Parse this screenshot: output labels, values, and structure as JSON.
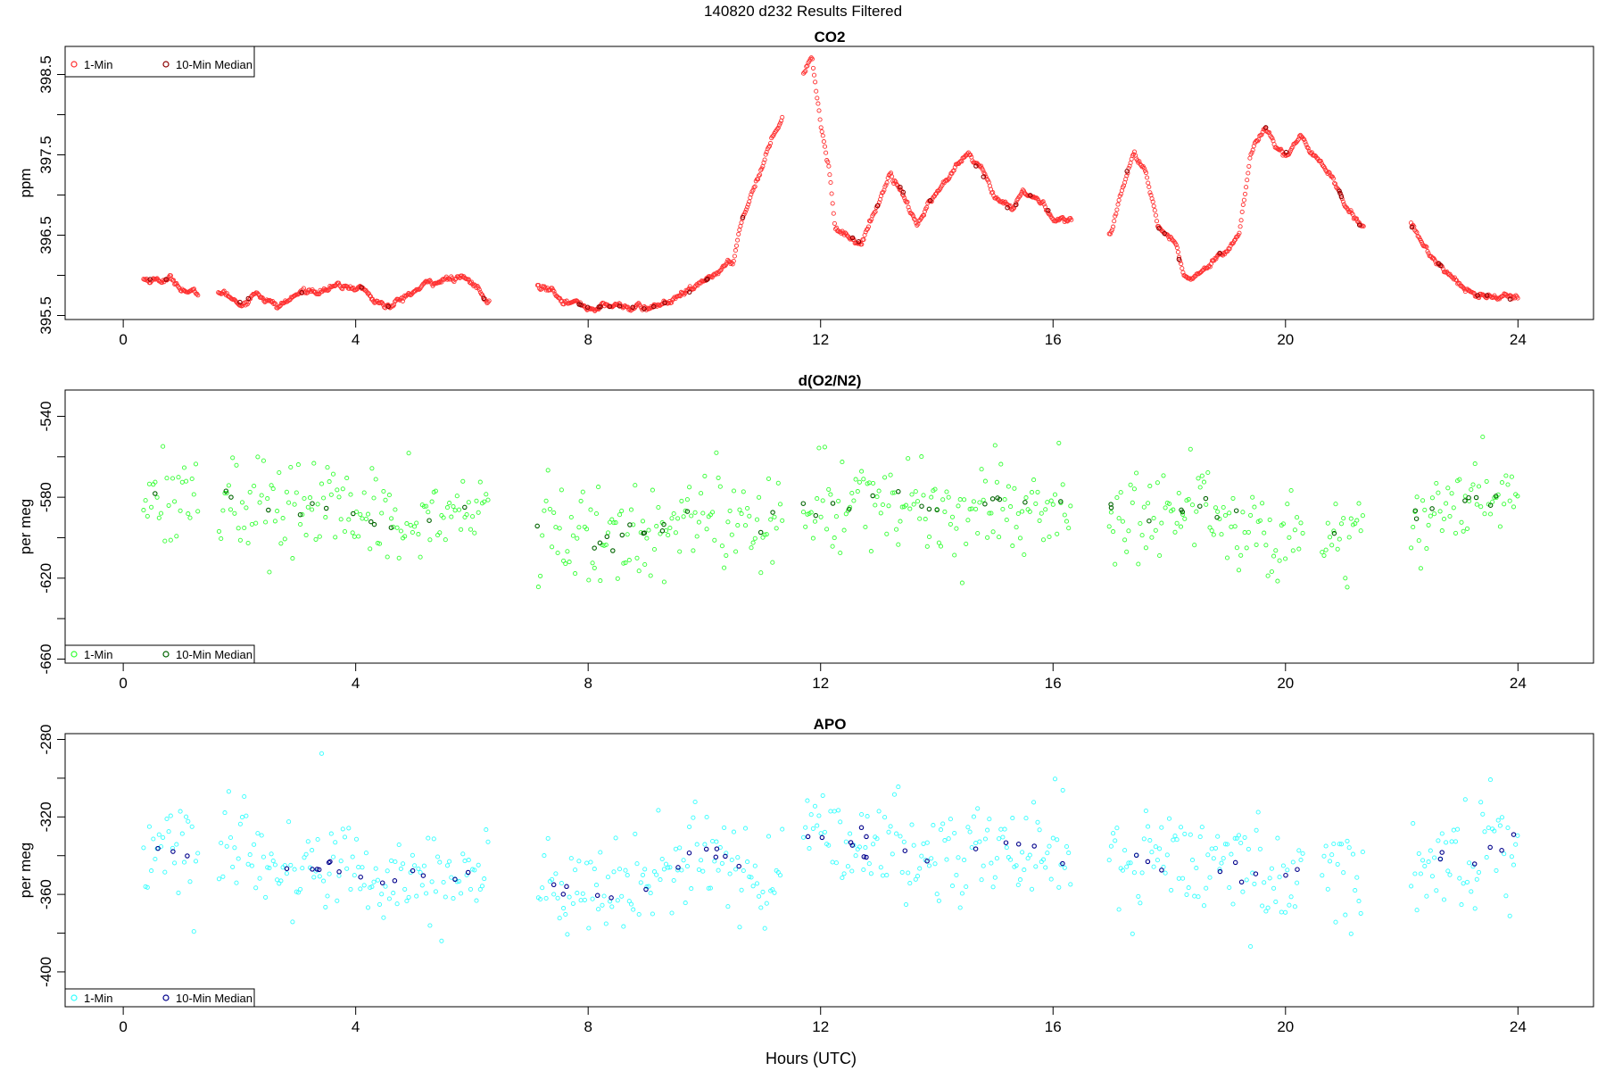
{
  "figure": {
    "title": "140820   d232   Results Filtered",
    "xlabel": "Hours (UTC)"
  },
  "chart_data": [
    {
      "type": "scatter",
      "title": "CO2",
      "ylabel": "ppm",
      "xlim": [
        -1.0,
        25.3
      ],
      "ylim": [
        395.45,
        398.85
      ],
      "xticks": [
        0,
        4,
        8,
        12,
        16,
        20,
        24
      ],
      "yticks": [
        395.5,
        396.5,
        397.5,
        398.5
      ],
      "minor_yticks": [
        396.0,
        397.0,
        398.0
      ],
      "legend": {
        "placement": "top-left",
        "entries": [
          "1-Min",
          "10-Min Median"
        ]
      },
      "colors": {
        "one_min": "#ff3030",
        "median": "#8b0000"
      },
      "series": [
        {
          "name": "1-Min",
          "anchors": [
            [
              0.35,
              395.95
            ],
            [
              0.8,
              395.95
            ],
            [
              1.25,
              395.75
            ],
            [
              1.65,
              395.8
            ],
            [
              2.05,
              395.65
            ],
            [
              2.3,
              395.8
            ],
            [
              2.65,
              395.6
            ],
            [
              3.1,
              395.8
            ],
            [
              3.6,
              395.85
            ],
            [
              4.1,
              395.85
            ],
            [
              4.3,
              395.7
            ],
            [
              4.6,
              395.6
            ],
            [
              5.0,
              395.8
            ],
            [
              5.45,
              395.95
            ],
            [
              5.85,
              395.95
            ],
            [
              6.1,
              395.85
            ],
            [
              6.25,
              395.65
            ],
            [
              7.15,
              395.85
            ],
            [
              7.4,
              395.85
            ],
            [
              7.6,
              395.7
            ],
            [
              8.0,
              395.6
            ],
            [
              8.6,
              395.62
            ],
            [
              9.0,
              395.58
            ],
            [
              9.5,
              395.7
            ],
            [
              9.9,
              395.85
            ],
            [
              10.2,
              396.05
            ],
            [
              10.5,
              396.15
            ],
            [
              10.6,
              396.6
            ],
            [
              10.9,
              397.2
            ],
            [
              11.3,
              397.95
            ],
            [
              11.7,
              398.55
            ],
            [
              11.85,
              398.75
            ],
            [
              12.0,
              397.9
            ],
            [
              12.15,
              397.3
            ],
            [
              12.25,
              396.6
            ],
            [
              12.7,
              396.4
            ],
            [
              13.0,
              396.9
            ],
            [
              13.2,
              397.3
            ],
            [
              13.45,
              397.0
            ],
            [
              13.65,
              396.6
            ],
            [
              13.9,
              396.95
            ],
            [
              14.3,
              397.3
            ],
            [
              14.5,
              397.5
            ],
            [
              14.75,
              397.3
            ],
            [
              15.0,
              396.95
            ],
            [
              15.3,
              396.8
            ],
            [
              15.5,
              397.05
            ],
            [
              15.8,
              396.9
            ],
            [
              16.05,
              396.7
            ],
            [
              16.3,
              396.7
            ],
            [
              17.0,
              396.5
            ],
            [
              17.2,
              397.15
            ],
            [
              17.4,
              397.55
            ],
            [
              17.6,
              397.2
            ],
            [
              17.8,
              396.6
            ],
            [
              18.1,
              396.4
            ],
            [
              18.25,
              395.95
            ],
            [
              18.5,
              396.0
            ],
            [
              18.9,
              396.3
            ],
            [
              19.2,
              396.5
            ],
            [
              19.4,
              397.5
            ],
            [
              19.65,
              397.85
            ],
            [
              19.8,
              397.7
            ],
            [
              20.05,
              397.5
            ],
            [
              20.25,
              397.7
            ],
            [
              20.65,
              397.4
            ],
            [
              20.9,
              397.1
            ],
            [
              21.0,
              396.9
            ],
            [
              21.3,
              396.6
            ],
            [
              22.2,
              396.6
            ],
            [
              22.5,
              396.25
            ],
            [
              22.9,
              395.95
            ],
            [
              23.3,
              395.75
            ],
            [
              23.6,
              395.75
            ],
            [
              24.0,
              395.68
            ]
          ],
          "gaps": [
            [
              1.3,
              1.62
            ],
            [
              6.3,
              7.12
            ],
            [
              11.35,
              11.7
            ],
            [
              16.32,
              16.95
            ],
            [
              21.35,
              22.15
            ]
          ],
          "noise": 0.03
        },
        {
          "name": "10-Min Median",
          "count": 52
        }
      ]
    },
    {
      "type": "scatter",
      "title": "d(O2/N2)",
      "ylabel": "per meg",
      "xlim": [
        -1.0,
        25.3
      ],
      "ylim": [
        -662,
        -527
      ],
      "xticks": [
        0,
        4,
        8,
        12,
        16,
        20,
        24
      ],
      "yticks": [
        -540,
        -580,
        -620,
        -660
      ],
      "minor_yticks": [
        -560,
        -600,
        -640
      ],
      "legend": {
        "placement": "bottom-left",
        "entries": [
          "1-Min",
          "10-Min Median"
        ]
      },
      "colors": {
        "one_min": "#33ff33",
        "median": "#006400"
      },
      "series": [
        {
          "name": "1-Min",
          "anchors": [
            [
              0.35,
              -578
            ],
            [
              1.0,
              -577
            ],
            [
              1.3,
              -582
            ],
            [
              1.7,
              -580
            ],
            [
              2.5,
              -585
            ],
            [
              3.0,
              -585
            ],
            [
              3.5,
              -585
            ],
            [
              4.0,
              -588
            ],
            [
              4.5,
              -595
            ],
            [
              5.0,
              -588
            ],
            [
              5.5,
              -590
            ],
            [
              6.0,
              -588
            ],
            [
              6.25,
              -585
            ],
            [
              7.15,
              -598
            ],
            [
              8.0,
              -600
            ],
            [
              8.5,
              -602
            ],
            [
              9.0,
              -595
            ],
            [
              9.5,
              -590
            ],
            [
              10.0,
              -582
            ],
            [
              10.5,
              -592
            ],
            [
              11.0,
              -598
            ],
            [
              11.3,
              -590
            ],
            [
              11.8,
              -586
            ],
            [
              12.5,
              -582
            ],
            [
              13.0,
              -578
            ],
            [
              13.5,
              -585
            ],
            [
              14.0,
              -588
            ],
            [
              14.5,
              -585
            ],
            [
              15.0,
              -582
            ],
            [
              15.5,
              -586
            ],
            [
              16.3,
              -586
            ],
            [
              17.0,
              -585
            ],
            [
              17.5,
              -587
            ],
            [
              18.0,
              -588
            ],
            [
              18.5,
              -585
            ],
            [
              19.0,
              -590
            ],
            [
              19.5,
              -595
            ],
            [
              20.0,
              -600
            ],
            [
              20.3,
              -598
            ],
            [
              20.65,
              -600
            ],
            [
              21.0,
              -600
            ],
            [
              21.3,
              -598
            ],
            [
              22.2,
              -590
            ],
            [
              22.8,
              -585
            ],
            [
              23.3,
              -580
            ],
            [
              23.8,
              -578
            ],
            [
              24.0,
              -575
            ]
          ],
          "gaps": [
            [
              1.3,
              1.62
            ],
            [
              6.3,
              7.12
            ],
            [
              11.35,
              11.7
            ],
            [
              16.32,
              16.95
            ],
            [
              20.3,
              20.6
            ],
            [
              21.35,
              22.15
            ]
          ],
          "noise": 12
        },
        {
          "name": "10-Min Median",
          "count": 60
        }
      ]
    },
    {
      "type": "scatter",
      "title": "APO",
      "ylabel": "per meg",
      "xlim": [
        -1.0,
        25.3
      ],
      "ylim": [
        -418,
        -277
      ],
      "xticks": [
        0,
        4,
        8,
        12,
        16,
        20,
        24
      ],
      "yticks": [
        -280,
        -320,
        -360,
        -400
      ],
      "minor_yticks": [
        -300,
        -340,
        -380
      ],
      "legend": {
        "placement": "bottom-left",
        "entries": [
          "1-Min",
          "10-Min Median"
        ]
      },
      "colors": {
        "one_min": "#33ffff",
        "median": "#00008b"
      },
      "series": [
        {
          "name": "1-Min",
          "anchors": [
            [
              0.35,
              -337
            ],
            [
              1.0,
              -335
            ],
            [
              1.3,
              -340
            ],
            [
              1.7,
              -340
            ],
            [
              2.5,
              -345
            ],
            [
              3.0,
              -345
            ],
            [
              3.5,
              -345
            ],
            [
              4.0,
              -348
            ],
            [
              4.5,
              -355
            ],
            [
              5.0,
              -348
            ],
            [
              5.5,
              -350
            ],
            [
              6.0,
              -350
            ],
            [
              6.25,
              -345
            ],
            [
              7.15,
              -355
            ],
            [
              8.0,
              -360
            ],
            [
              8.5,
              -362
            ],
            [
              9.0,
              -355
            ],
            [
              9.5,
              -345
            ],
            [
              10.0,
              -338
            ],
            [
              10.5,
              -348
            ],
            [
              11.0,
              -352
            ],
            [
              11.3,
              -338
            ],
            [
              11.8,
              -332
            ],
            [
              12.5,
              -335
            ],
            [
              13.0,
              -335
            ],
            [
              13.5,
              -340
            ],
            [
              14.0,
              -340
            ],
            [
              14.5,
              -338
            ],
            [
              15.0,
              -335
            ],
            [
              15.5,
              -338
            ],
            [
              16.3,
              -340
            ],
            [
              17.0,
              -338
            ],
            [
              17.5,
              -342
            ],
            [
              18.0,
              -342
            ],
            [
              18.5,
              -340
            ],
            [
              19.0,
              -345
            ],
            [
              19.5,
              -348
            ],
            [
              20.0,
              -352
            ],
            [
              20.3,
              -350
            ],
            [
              20.65,
              -350
            ],
            [
              21.0,
              -352
            ],
            [
              21.3,
              -350
            ],
            [
              22.2,
              -345
            ],
            [
              22.8,
              -342
            ],
            [
              23.3,
              -338
            ],
            [
              23.8,
              -335
            ],
            [
              24.0,
              -332
            ]
          ],
          "gaps": [
            [
              1.3,
              1.62
            ],
            [
              6.3,
              7.12
            ],
            [
              11.35,
              11.7
            ],
            [
              16.32,
              16.95
            ],
            [
              20.3,
              20.6
            ],
            [
              21.35,
              22.15
            ]
          ],
          "noise": 13
        },
        {
          "name": "10-Min Median",
          "count": 60
        }
      ]
    }
  ]
}
